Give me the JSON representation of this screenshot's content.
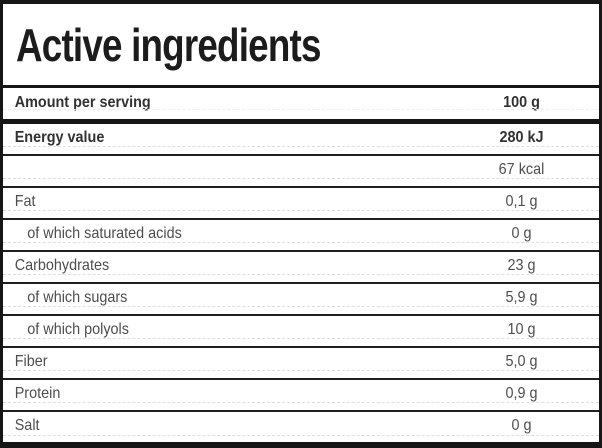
{
  "title": "Active ingredients",
  "table": {
    "header": {
      "label": "Amount per serving",
      "value": "100 g"
    },
    "rows": [
      {
        "label": "Energy value",
        "value": "280 kJ",
        "bold": true
      },
      {
        "label": "",
        "value": "67 kcal"
      },
      {
        "label": "Fat",
        "value": "0,1 g"
      },
      {
        "label": "of which saturated acids",
        "value": "0 g",
        "indent": true
      },
      {
        "label": "Carbohydrates",
        "value": "23 g"
      },
      {
        "label": "of which sugars",
        "value": "5,9 g",
        "indent": true
      },
      {
        "label": "of which polyols",
        "value": "10 g",
        "indent": true
      },
      {
        "label": "Fiber",
        "value": "5,0 g"
      },
      {
        "label": "Protein",
        "value": "0,9 g"
      },
      {
        "label": "Salt",
        "value": "0 g"
      }
    ]
  },
  "colors": {
    "c-frame": "#161616",
    "c-divider": "#1e1e1e",
    "c-dashed": "#dedede",
    "c-title": "#1c1c1c",
    "c-bold": "#323232",
    "c-text": "#4d4d4d",
    "c-bg": "#ffffff"
  }
}
